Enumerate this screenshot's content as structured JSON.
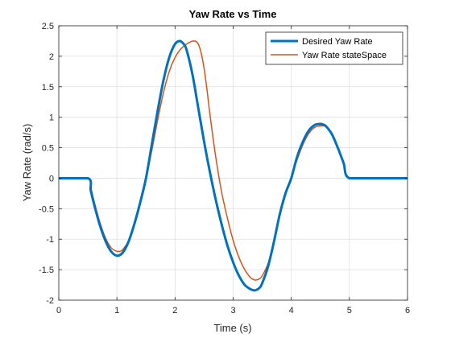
{
  "chart_data": {
    "type": "line",
    "title": "Yaw Rate vs Time",
    "xlabel": "Time (s)",
    "ylabel": "Yaw Rate (rad/s)",
    "xlim": [
      0,
      6
    ],
    "ylim": [
      -2,
      2.5
    ],
    "xticks": [
      0,
      1,
      2,
      3,
      4,
      5,
      6
    ],
    "xtick_labels": [
      "0",
      "1",
      "2",
      "3",
      "4",
      "5",
      "6"
    ],
    "yticks": [
      -2,
      -1.5,
      -1,
      -0.5,
      0,
      0.5,
      1,
      1.5,
      2,
      2.5
    ],
    "ytick_labels": [
      "-2",
      "-1.5",
      "-1",
      "-0.5",
      "0",
      "0.5",
      "1",
      "1.5",
      "2",
      "2.5"
    ],
    "grid": true,
    "legend_position": "top-right",
    "series": [
      {
        "name": "Desired Yaw Rate",
        "color": "#0072BD",
        "line_width": 3,
        "x": [
          0,
          0.5,
          0.55,
          0.6,
          0.7,
          0.8,
          0.9,
          1.0,
          1.1,
          1.2,
          1.3,
          1.4,
          1.5,
          1.6,
          1.7,
          1.8,
          1.9,
          2.0,
          2.08,
          2.15,
          2.2,
          2.3,
          2.4,
          2.5,
          2.6,
          2.7,
          2.8,
          2.9,
          3.0,
          3.1,
          3.2,
          3.3,
          3.37,
          3.45,
          3.5,
          3.6,
          3.7,
          3.8,
          3.9,
          4.0,
          4.1,
          4.2,
          4.3,
          4.4,
          4.5,
          4.55,
          4.6,
          4.7,
          4.8,
          4.9,
          5.0,
          5.5,
          6.0
        ],
        "y": [
          0,
          0,
          -0.2,
          -0.4,
          -0.75,
          -1.02,
          -1.2,
          -1.27,
          -1.22,
          -1.04,
          -0.75,
          -0.4,
          0,
          0.55,
          1.1,
          1.6,
          1.98,
          2.2,
          2.25,
          2.2,
          2.1,
          1.7,
          1.15,
          0.6,
          0.1,
          -0.35,
          -0.75,
          -1.1,
          -1.38,
          -1.6,
          -1.75,
          -1.82,
          -1.84,
          -1.8,
          -1.72,
          -1.45,
          -1.05,
          -0.6,
          -0.25,
          0,
          0.35,
          0.6,
          0.78,
          0.87,
          0.89,
          0.88,
          0.85,
          0.72,
          0.5,
          0.25,
          0,
          0,
          0
        ]
      },
      {
        "name": "Yaw Rate stateSpace",
        "color": "#D95319",
        "line_width": 1.5,
        "x": [
          0,
          0.5,
          0.55,
          0.6,
          0.7,
          0.8,
          0.9,
          1.0,
          1.05,
          1.1,
          1.2,
          1.3,
          1.4,
          1.5,
          1.6,
          1.7,
          1.8,
          1.9,
          2.0,
          2.1,
          2.2,
          2.3,
          2.35,
          2.4,
          2.45,
          2.5,
          2.55,
          2.6,
          2.7,
          2.8,
          2.9,
          3.0,
          3.1,
          3.2,
          3.3,
          3.38,
          3.45,
          3.5,
          3.6,
          3.7,
          3.8,
          3.9,
          4.0,
          4.1,
          4.2,
          4.3,
          4.4,
          4.52,
          4.6,
          4.7,
          4.8,
          4.9,
          5.0,
          5.5,
          6.0
        ],
        "y": [
          0,
          0,
          -0.15,
          -0.35,
          -0.7,
          -0.97,
          -1.14,
          -1.2,
          -1.2,
          -1.17,
          -1.03,
          -0.78,
          -0.43,
          0,
          0.45,
          0.95,
          1.4,
          1.75,
          1.98,
          2.12,
          2.2,
          2.25,
          2.25,
          2.2,
          2.05,
          1.8,
          1.45,
          1.05,
          0.35,
          -0.22,
          -0.65,
          -1.02,
          -1.3,
          -1.5,
          -1.63,
          -1.67,
          -1.65,
          -1.6,
          -1.4,
          -1.05,
          -0.62,
          -0.28,
          0,
          0.3,
          0.55,
          0.73,
          0.83,
          0.86,
          0.84,
          0.72,
          0.5,
          0.25,
          0,
          0,
          0
        ]
      }
    ]
  }
}
